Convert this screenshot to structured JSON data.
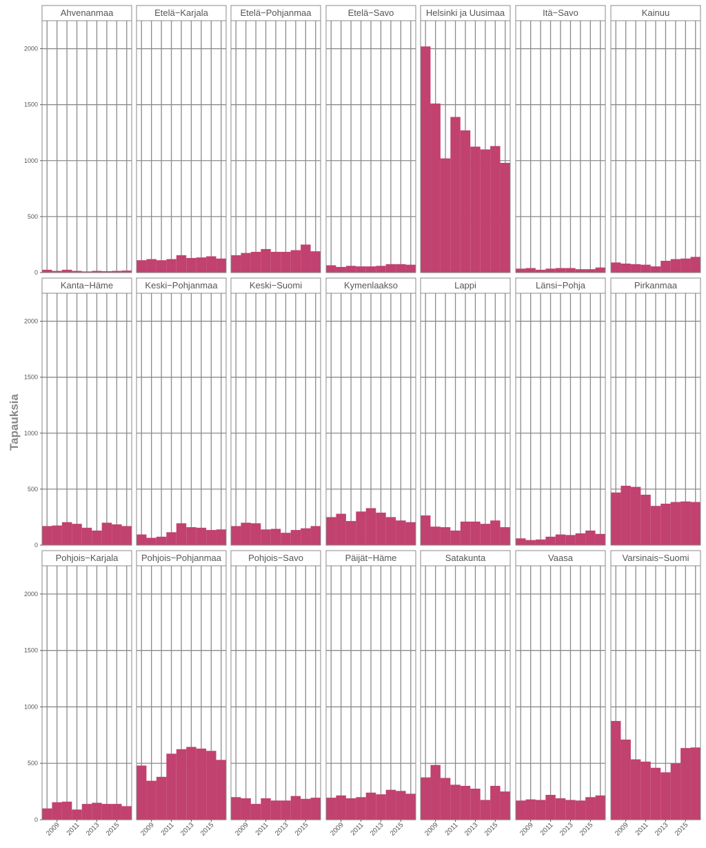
{
  "chart_data": {
    "type": "area",
    "ylabel": "Tapauksia",
    "xlabel": "",
    "ylim": [
      0,
      2250
    ],
    "y_ticks": [
      0,
      500,
      1000,
      1500,
      2000
    ],
    "x_tick_labels": [
      "2009",
      "2011",
      "2013",
      "2015"
    ],
    "x_ticks": [
      2009,
      2011,
      2013,
      2015
    ],
    "x": [
      2008,
      2009,
      2010,
      2011,
      2012,
      2013,
      2014,
      2015,
      2016
    ],
    "xlim": [
      2007.5,
      2016.5
    ],
    "bar_color": "#c1416f",
    "grid": true,
    "panels": [
      {
        "name": "Ahvenanmaa",
        "values": [
          25,
          15,
          25,
          15,
          10,
          15,
          12,
          15,
          18
        ]
      },
      {
        "name": "Etelä−Karjala",
        "values": [
          110,
          120,
          110,
          120,
          155,
          130,
          135,
          145,
          125
        ]
      },
      {
        "name": "Etelä−Pohjanmaa",
        "values": [
          155,
          175,
          185,
          210,
          185,
          185,
          200,
          250,
          190
        ]
      },
      {
        "name": "Etelä−Savo",
        "values": [
          65,
          50,
          60,
          55,
          55,
          60,
          75,
          75,
          70
        ]
      },
      {
        "name": "Helsinki ja Uusimaa",
        "values": [
          2020,
          1510,
          1020,
          1390,
          1270,
          1125,
          1100,
          1130,
          980
        ]
      },
      {
        "name": "Itä−Savo",
        "values": [
          35,
          40,
          25,
          35,
          40,
          40,
          30,
          30,
          45
        ]
      },
      {
        "name": "Kainuu",
        "values": [
          90,
          80,
          75,
          70,
          55,
          105,
          120,
          125,
          140
        ]
      },
      {
        "name": "Kanta−Häme",
        "values": [
          170,
          175,
          205,
          190,
          155,
          130,
          200,
          185,
          170
        ]
      },
      {
        "name": "Keski−Pohjanmaa",
        "values": [
          95,
          65,
          75,
          115,
          195,
          160,
          155,
          135,
          140
        ]
      },
      {
        "name": "Keski−Suomi",
        "values": [
          170,
          200,
          195,
          140,
          145,
          110,
          135,
          150,
          170
        ]
      },
      {
        "name": "Kymenlaakso",
        "values": [
          250,
          280,
          215,
          300,
          330,
          290,
          250,
          220,
          205
        ]
      },
      {
        "name": "Lappi",
        "values": [
          265,
          165,
          160,
          130,
          210,
          210,
          190,
          220,
          160
        ]
      },
      {
        "name": "Länsi−Pohja",
        "values": [
          60,
          45,
          50,
          75,
          95,
          90,
          105,
          130,
          100
        ]
      },
      {
        "name": "Pirkanmaa",
        "values": [
          470,
          530,
          520,
          450,
          350,
          370,
          385,
          390,
          385
        ]
      },
      {
        "name": "Pohjois−Karjala",
        "values": [
          100,
          155,
          160,
          90,
          140,
          150,
          140,
          140,
          120
        ]
      },
      {
        "name": "Pohjois−Pohjanmaa",
        "values": [
          480,
          345,
          380,
          585,
          625,
          645,
          630,
          610,
          530
        ]
      },
      {
        "name": "Pohjois−Savo",
        "values": [
          200,
          190,
          140,
          190,
          170,
          170,
          210,
          185,
          195
        ]
      },
      {
        "name": "Päijät−Häme",
        "values": [
          195,
          215,
          190,
          200,
          240,
          225,
          265,
          255,
          230
        ]
      },
      {
        "name": "Satakunta",
        "values": [
          375,
          485,
          370,
          310,
          300,
          275,
          175,
          300,
          250
        ]
      },
      {
        "name": "Vaasa",
        "values": [
          170,
          180,
          175,
          220,
          190,
          175,
          170,
          200,
          215
        ]
      },
      {
        "name": "Varsinais−Suomi",
        "values": [
          875,
          710,
          535,
          515,
          460,
          420,
          500,
          635,
          640
        ]
      }
    ]
  }
}
